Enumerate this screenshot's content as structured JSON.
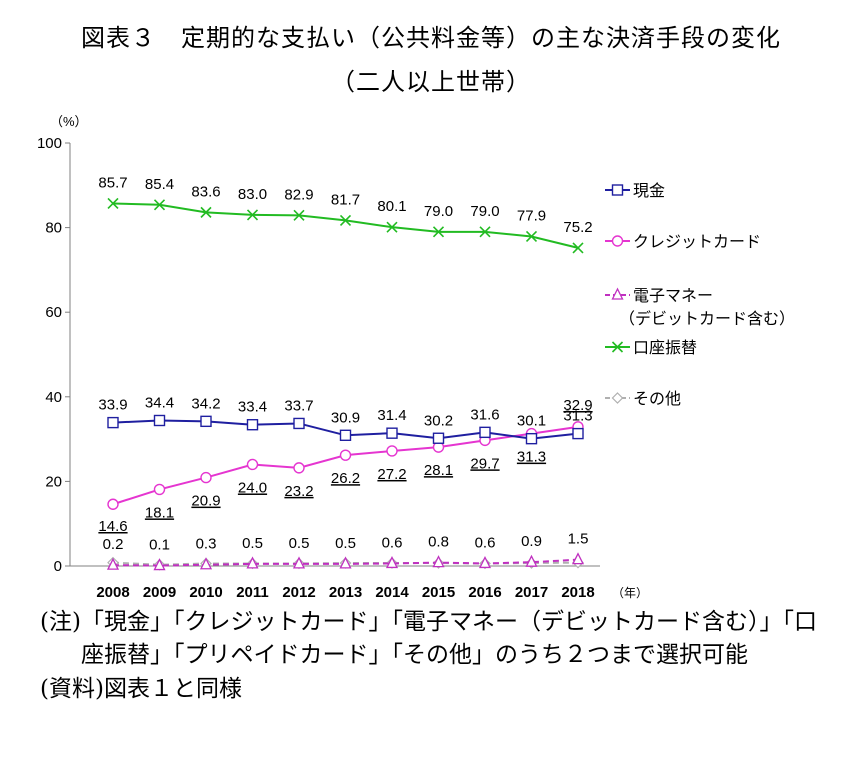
{
  "title": "図表３　定期的な支払い（公共料金等）の主な決済手段の変化",
  "subtitle": "（二人以上世帯）",
  "notes": {
    "note_tag": "(注)",
    "note_text": "「現金」「クレジットカード」「電子マネー（デビットカード含む）」「口座振替」「プリペイドカード」「その他」のうち２つまで選択可能",
    "source_tag": "(資料)",
    "source_text": "図表１と同様"
  },
  "chart_data": {
    "type": "line",
    "ylabel": "（%）",
    "xlabel": "（年）",
    "ylim": [
      0,
      100
    ],
    "yticks": [
      0,
      20,
      40,
      60,
      80,
      100
    ],
    "x": [
      "2008",
      "2009",
      "2010",
      "2011",
      "2012",
      "2013",
      "2014",
      "2015",
      "2016",
      "2017",
      "2018"
    ],
    "legend_position": "right",
    "grid": false,
    "series": [
      {
        "name": "現金",
        "color": "#1f1fa0",
        "marker": "square",
        "dash": false,
        "label_pos": "above",
        "values": [
          33.9,
          34.4,
          34.2,
          33.4,
          33.7,
          30.9,
          31.4,
          30.2,
          31.6,
          30.1,
          31.3
        ],
        "labels": [
          "33.9",
          "34.4",
          "34.2",
          "33.4",
          "33.7",
          "30.9",
          "31.4",
          "30.2",
          "31.6",
          "30.1",
          "31.3"
        ]
      },
      {
        "name": "クレジットカード",
        "color": "#e535d0",
        "marker": "circle",
        "dash": false,
        "label_pos": "below",
        "values": [
          14.6,
          18.1,
          20.9,
          24.0,
          23.2,
          26.2,
          27.2,
          28.1,
          29.7,
          31.3,
          32.9
        ],
        "labels": [
          "14.6",
          "18.1",
          "20.9",
          "24.0",
          "23.2",
          "26.2",
          "27.2",
          "28.1",
          "29.7",
          "31.3",
          "32.9"
        ]
      },
      {
        "name": "電子マネー",
        "name_line2": "（デビットカード含む）",
        "color": "#c030c0",
        "marker": "triangle",
        "dash": true,
        "label_pos": "above",
        "values": [
          0.2,
          0.1,
          0.3,
          0.5,
          0.5,
          0.5,
          0.6,
          0.8,
          0.6,
          0.9,
          1.5
        ],
        "labels": [
          "0.2",
          "0.1",
          "0.3",
          "0.5",
          "0.5",
          "0.5",
          "0.6",
          "0.8",
          "0.6",
          "0.9",
          "1.5"
        ]
      },
      {
        "name": "口座振替",
        "color": "#22bb22",
        "marker": "x",
        "dash": false,
        "label_pos": "above",
        "values": [
          85.7,
          85.4,
          83.6,
          83.0,
          82.9,
          81.7,
          80.1,
          79.0,
          79.0,
          77.9,
          75.2
        ],
        "labels": [
          "85.7",
          "85.4",
          "83.6",
          "83.0",
          "82.9",
          "81.7",
          "80.1",
          "79.0",
          "79.0",
          "77.9",
          "75.2"
        ]
      },
      {
        "name": "その他",
        "color": "#b0b0b0",
        "marker": "diamond",
        "dash": true,
        "label_pos": "none",
        "values": [
          0.8,
          0.3,
          0.6,
          0.6,
          0.6,
          0.7,
          0.7,
          0.7,
          0.6,
          0.7,
          0.8
        ],
        "labels": []
      }
    ]
  }
}
